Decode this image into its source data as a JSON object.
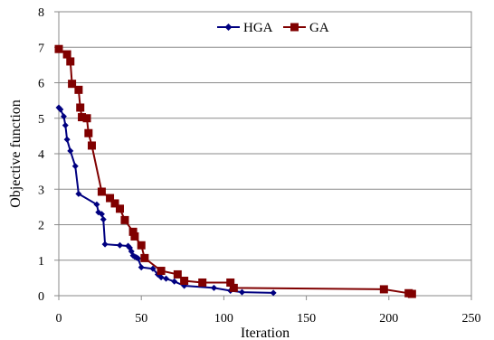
{
  "chart_data": {
    "type": "line",
    "title": "",
    "xlabel": "Iteration",
    "ylabel": "Objective function",
    "xlim": [
      0,
      250
    ],
    "ylim": [
      0,
      8
    ],
    "x_ticks": [
      0,
      50,
      100,
      150,
      200,
      250
    ],
    "y_ticks": [
      0,
      1,
      2,
      3,
      4,
      5,
      6,
      7,
      8
    ],
    "grid": "horizontal",
    "legend_position": "top-right",
    "series": [
      {
        "name": "HGA",
        "color": "#000080",
        "marker": "diamond",
        "x": [
          0,
          1,
          3,
          4,
          5,
          7,
          10,
          12,
          23,
          24,
          26,
          27,
          28,
          37,
          42,
          43,
          44,
          45,
          46,
          47,
          48,
          50,
          57,
          60,
          62,
          65,
          70,
          76,
          94,
          104,
          111,
          130
        ],
        "y": [
          5.3,
          5.25,
          5.05,
          4.8,
          4.4,
          4.08,
          3.65,
          2.87,
          2.57,
          2.35,
          2.3,
          2.15,
          1.45,
          1.42,
          1.4,
          1.35,
          1.25,
          1.13,
          1.1,
          1.08,
          1.05,
          0.8,
          0.76,
          0.6,
          0.52,
          0.48,
          0.4,
          0.28,
          0.22,
          0.14,
          0.1,
          0.08
        ]
      },
      {
        "name": "GA",
        "color": "#800000",
        "marker": "square",
        "x": [
          0,
          5,
          7,
          8,
          12,
          13,
          14,
          17,
          18,
          20,
          26,
          31,
          34,
          37,
          40,
          45,
          46,
          50,
          52,
          62,
          72,
          76,
          87,
          104,
          106,
          197,
          212,
          214
        ],
        "y": [
          6.95,
          6.8,
          6.6,
          5.97,
          5.8,
          5.3,
          5.03,
          5.0,
          4.58,
          4.23,
          2.93,
          2.75,
          2.6,
          2.45,
          2.13,
          1.8,
          1.67,
          1.42,
          1.06,
          0.7,
          0.6,
          0.42,
          0.37,
          0.37,
          0.22,
          0.18,
          0.07,
          0.05
        ]
      }
    ]
  }
}
